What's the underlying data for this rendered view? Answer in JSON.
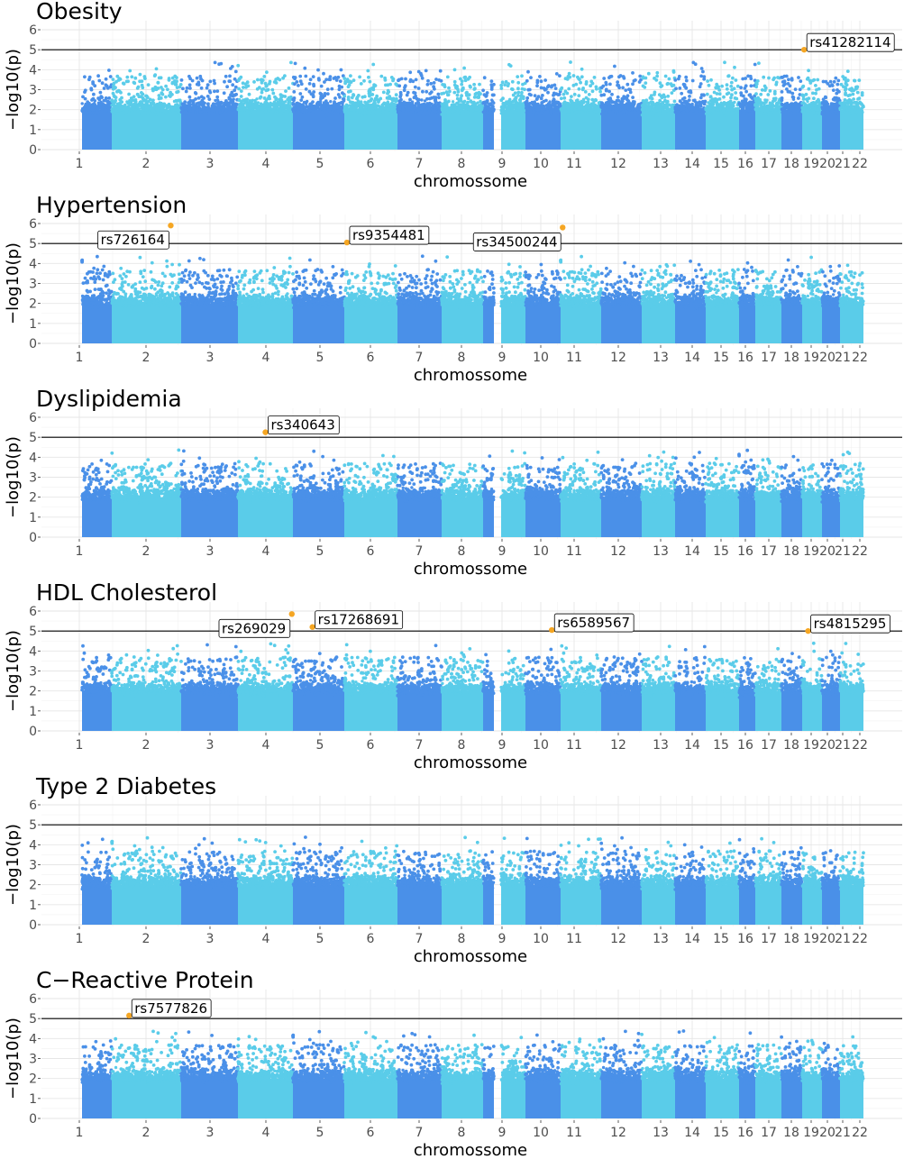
{
  "colors": {
    "dark": "#4A90E8",
    "light": "#5ACCE9",
    "hit": "#F5A623",
    "threshold": "#000000"
  },
  "chart_data": [
    {
      "type": "scatter",
      "title": "Obesity",
      "xlabel": "chromossome",
      "ylabel": "−log10(p)",
      "ylim": [
        0,
        6
      ],
      "yticks": [
        "0",
        "1",
        "2",
        "3",
        "4",
        "5",
        "6"
      ],
      "chromosomes": [
        "1",
        "2",
        "3",
        "4",
        "5",
        "6",
        "7",
        "8",
        "9",
        "10",
        "11",
        "12",
        "13",
        "14",
        "15",
        "16",
        "17",
        "18",
        "19",
        "20",
        "21",
        "22"
      ],
      "threshold": 5,
      "significant": [
        {
          "label": "rs41282114",
          "chrom": "20",
          "pos": 0.1,
          "y": 5.0
        }
      ]
    },
    {
      "type": "scatter",
      "title": "Hypertension",
      "xlabel": "chromossome",
      "ylabel": "−log10(p)",
      "ylim": [
        0,
        6
      ],
      "yticks": [
        "0",
        "1",
        "2",
        "3",
        "4",
        "5",
        "6"
      ],
      "chromosomes": [
        "1",
        "2",
        "3",
        "4",
        "5",
        "6",
        "7",
        "8",
        "9",
        "10",
        "11",
        "12",
        "13",
        "14",
        "15",
        "16",
        "17",
        "18",
        "19",
        "20",
        "21",
        "22"
      ],
      "threshold": 5,
      "significant": [
        {
          "label": "rs726164",
          "chrom": "2",
          "pos": 0.85,
          "y": 5.9
        },
        {
          "label": "rs9354481",
          "chrom": "6",
          "pos": 0.05,
          "y": 5.05
        },
        {
          "label": "rs34500244",
          "chrom": "12",
          "pos": 0.05,
          "y": 5.8
        }
      ]
    },
    {
      "type": "scatter",
      "title": "Dyslipidemia",
      "xlabel": "chromossome",
      "ylabel": "−log10(p)",
      "ylim": [
        0,
        6
      ],
      "yticks": [
        "0",
        "1",
        "2",
        "3",
        "4",
        "5",
        "6"
      ],
      "chromosomes": [
        "1",
        "2",
        "3",
        "4",
        "5",
        "6",
        "7",
        "8",
        "9",
        "10",
        "11",
        "12",
        "13",
        "14",
        "15",
        "16",
        "17",
        "18",
        "19",
        "20",
        "21",
        "22"
      ],
      "threshold": 5,
      "significant": [
        {
          "label": "rs340643",
          "chrom": "4",
          "pos": 0.5,
          "y": 5.25
        }
      ]
    },
    {
      "type": "scatter",
      "title": "HDL Cholesterol",
      "xlabel": "chromossome",
      "ylabel": "−log10(p)",
      "ylim": [
        0,
        6
      ],
      "yticks": [
        "0",
        "1",
        "2",
        "3",
        "4",
        "5",
        "6"
      ],
      "chromosomes": [
        "1",
        "2",
        "3",
        "4",
        "5",
        "6",
        "7",
        "8",
        "9",
        "10",
        "11",
        "12",
        "13",
        "14",
        "15",
        "16",
        "17",
        "18",
        "19",
        "20",
        "21",
        "22"
      ],
      "threshold": 5,
      "significant": [
        {
          "label": "rs269029",
          "chrom": "4",
          "pos": 0.98,
          "y": 5.85
        },
        {
          "label": "rs17268691",
          "chrom": "5",
          "pos": 0.38,
          "y": 5.2
        },
        {
          "label": "rs6589567",
          "chrom": "11",
          "pos": 0.75,
          "y": 5.05
        },
        {
          "label": "rs4815295",
          "chrom": "20",
          "pos": 0.3,
          "y": 5.0
        }
      ]
    },
    {
      "type": "scatter",
      "title": "Type 2 Diabetes",
      "xlabel": "chromossome",
      "ylabel": "−log10(p)",
      "ylim": [
        0,
        6
      ],
      "yticks": [
        "0",
        "1",
        "2",
        "3",
        "4",
        "5",
        "6"
      ],
      "chromosomes": [
        "1",
        "2",
        "3",
        "4",
        "5",
        "6",
        "7",
        "8",
        "9",
        "10",
        "11",
        "12",
        "13",
        "14",
        "15",
        "16",
        "17",
        "18",
        "19",
        "20",
        "21",
        "22"
      ],
      "threshold": 5,
      "significant": []
    },
    {
      "type": "scatter",
      "title": "C−Reactive Protein",
      "xlabel": "chromossome",
      "ylabel": "−log10(p)",
      "ylim": [
        0,
        6
      ],
      "yticks": [
        "0",
        "1",
        "2",
        "3",
        "4",
        "5",
        "6"
      ],
      "chromosomes": [
        "1",
        "2",
        "3",
        "4",
        "5",
        "6",
        "7",
        "8",
        "9",
        "10",
        "11",
        "12",
        "13",
        "14",
        "15",
        "16",
        "17",
        "18",
        "19",
        "20",
        "21",
        "22"
      ],
      "threshold": 5,
      "significant": [
        {
          "label": "rs7577826",
          "chrom": "2",
          "pos": 0.25,
          "y": 5.15
        }
      ]
    }
  ]
}
